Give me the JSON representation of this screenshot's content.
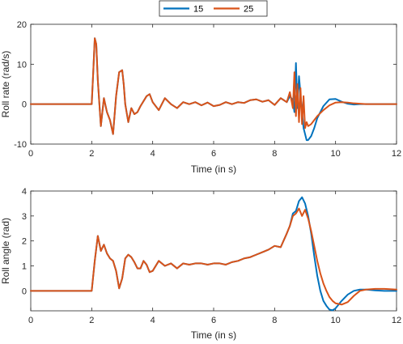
{
  "legend": {
    "entries": [
      {
        "label": "15",
        "color": "#0072BD"
      },
      {
        "label": "25",
        "color": "#D95319"
      }
    ]
  },
  "chart_data": [
    {
      "type": "line",
      "title": "",
      "xlabel": "Time (in s)",
      "ylabel": "Roll rate (rad/s)",
      "xlim": [
        0,
        12
      ],
      "ylim": [
        -10,
        20
      ],
      "xticks": [
        0,
        2,
        4,
        6,
        8,
        10,
        12
      ],
      "yticks": [
        -10,
        0,
        10,
        20
      ],
      "grid": false,
      "series": [
        {
          "name": "15",
          "color": "#0072BD",
          "x": [
            0,
            2.0,
            2.05,
            2.1,
            2.15,
            2.2,
            2.3,
            2.4,
            2.5,
            2.6,
            2.7,
            2.8,
            2.9,
            3.0,
            3.05,
            3.1,
            3.2,
            3.3,
            3.4,
            3.5,
            3.6,
            3.8,
            3.9,
            4.0,
            4.2,
            4.4,
            4.6,
            4.8,
            5.0,
            5.2,
            5.4,
            5.6,
            5.8,
            6.0,
            6.2,
            6.4,
            6.6,
            6.8,
            7.0,
            7.2,
            7.4,
            7.6,
            7.8,
            8.0,
            8.2,
            8.4,
            8.5,
            8.6,
            8.65,
            8.7,
            8.75,
            8.8,
            8.9,
            8.95,
            9.0,
            9.05,
            9.1,
            9.2,
            9.3,
            9.4,
            9.6,
            9.8,
            10.0,
            10.2,
            10.4,
            10.6,
            10.8,
            11.0,
            11.3,
            11.6,
            12.0
          ],
          "y": [
            0,
            0,
            8,
            16.5,
            15,
            6,
            -5.5,
            1.5,
            -2,
            -4,
            -7.5,
            2,
            8,
            8.5,
            5,
            0,
            -4.5,
            -1,
            -2.5,
            -2,
            -0.5,
            2,
            2.5,
            0.5,
            -1.5,
            1.5,
            0,
            -1,
            0.5,
            0,
            0.5,
            -0.3,
            0.4,
            -0.5,
            -0.2,
            0.5,
            0,
            0.5,
            0.3,
            1,
            1.2,
            0.6,
            1,
            -0.2,
            1.5,
            0.5,
            2,
            1,
            -2,
            10.3,
            -1,
            7,
            -2,
            -6,
            -7.5,
            -9,
            -9,
            -8,
            -6,
            -3.5,
            -0.5,
            1.2,
            1.3,
            0.6,
            0.1,
            -0.1,
            0,
            0,
            0,
            0,
            0
          ]
        },
        {
          "name": "25",
          "color": "#D95319",
          "x": [
            0,
            2.0,
            2.05,
            2.1,
            2.15,
            2.2,
            2.3,
            2.4,
            2.5,
            2.6,
            2.7,
            2.8,
            2.9,
            3.0,
            3.05,
            3.1,
            3.2,
            3.3,
            3.4,
            3.5,
            3.6,
            3.8,
            3.9,
            4.0,
            4.2,
            4.4,
            4.6,
            4.8,
            5.0,
            5.2,
            5.4,
            5.6,
            5.8,
            6.0,
            6.2,
            6.4,
            6.6,
            6.8,
            7.0,
            7.2,
            7.4,
            7.6,
            7.8,
            8.0,
            8.2,
            8.4,
            8.5,
            8.6,
            8.65,
            8.7,
            8.75,
            8.8,
            8.85,
            8.9,
            8.95,
            9.0,
            9.05,
            9.1,
            9.2,
            9.3,
            9.4,
            9.6,
            9.8,
            10.0,
            10.2,
            10.4,
            10.6,
            10.8,
            11.0,
            11.3,
            11.6,
            12.0
          ],
          "y": [
            0,
            0,
            8,
            16.5,
            15,
            6,
            -5.5,
            1.5,
            -2,
            -4,
            -7.5,
            2,
            8,
            8.5,
            5,
            0,
            -4.5,
            -1,
            -2.5,
            -2,
            -0.5,
            2,
            2.5,
            0.5,
            -1.5,
            1.5,
            0,
            -1,
            0.5,
            0,
            0.5,
            -0.3,
            0.4,
            -0.5,
            -0.2,
            0.5,
            0,
            0.5,
            0.3,
            1,
            1.2,
            0.6,
            1,
            -0.2,
            1.5,
            0.5,
            3,
            -1,
            8,
            -3,
            5,
            -4.5,
            4,
            -5,
            2,
            -6,
            -4.5,
            -5.5,
            -5,
            -4,
            -3,
            -1.5,
            -0.3,
            0.4,
            0.5,
            0.4,
            0.2,
            0.1,
            0,
            0,
            0,
            0
          ]
        }
      ]
    },
    {
      "type": "line",
      "title": "",
      "xlabel": "Time (in s)",
      "ylabel": "Roll angle (rad)",
      "xlim": [
        0,
        12
      ],
      "ylim": [
        -0.8,
        4
      ],
      "xticks": [
        0,
        2,
        4,
        6,
        8,
        10,
        12
      ],
      "yticks": [
        0,
        1,
        2,
        3,
        4
      ],
      "grid": false,
      "series": [
        {
          "name": "15",
          "color": "#0072BD",
          "x": [
            0,
            2.0,
            2.1,
            2.2,
            2.3,
            2.4,
            2.5,
            2.6,
            2.7,
            2.8,
            2.9,
            3.0,
            3.1,
            3.2,
            3.3,
            3.4,
            3.5,
            3.6,
            3.7,
            3.8,
            3.9,
            4.0,
            4.2,
            4.4,
            4.6,
            4.8,
            5.0,
            5.2,
            5.4,
            5.6,
            5.8,
            6.0,
            6.2,
            6.4,
            6.6,
            6.8,
            7.0,
            7.2,
            7.4,
            7.6,
            7.8,
            8.0,
            8.2,
            8.4,
            8.5,
            8.6,
            8.7,
            8.8,
            8.9,
            9.0,
            9.1,
            9.2,
            9.3,
            9.4,
            9.5,
            9.6,
            9.7,
            9.8,
            9.9,
            10.0,
            10.2,
            10.4,
            10.6,
            10.8,
            11.0,
            11.3,
            11.6,
            12.0
          ],
          "y": [
            0,
            0,
            1.2,
            2.2,
            1.6,
            1.85,
            1.5,
            1.3,
            1.2,
            0.8,
            0.1,
            0.5,
            1.3,
            1.45,
            1.35,
            1.15,
            0.9,
            0.9,
            1.2,
            1.05,
            0.75,
            0.8,
            1.2,
            1.0,
            1.1,
            0.9,
            1.1,
            1.05,
            1.1,
            1.1,
            1.05,
            1.1,
            1.1,
            1.05,
            1.15,
            1.2,
            1.3,
            1.35,
            1.45,
            1.55,
            1.65,
            1.8,
            1.75,
            2.3,
            2.6,
            3.1,
            3.2,
            3.6,
            3.75,
            3.5,
            3.0,
            2.3,
            1.4,
            0.6,
            0.0,
            -0.4,
            -0.6,
            -0.75,
            -0.78,
            -0.7,
            -0.4,
            -0.15,
            0.0,
            0.05,
            0.05,
            0.02,
            0.0,
            0.0
          ]
        },
        {
          "name": "25",
          "color": "#D95319",
          "x": [
            0,
            2.0,
            2.1,
            2.2,
            2.3,
            2.4,
            2.5,
            2.6,
            2.7,
            2.8,
            2.9,
            3.0,
            3.1,
            3.2,
            3.3,
            3.4,
            3.5,
            3.6,
            3.7,
            3.8,
            3.9,
            4.0,
            4.2,
            4.4,
            4.6,
            4.8,
            5.0,
            5.2,
            5.4,
            5.6,
            5.8,
            6.0,
            6.2,
            6.4,
            6.6,
            6.8,
            7.0,
            7.2,
            7.4,
            7.6,
            7.8,
            8.0,
            8.2,
            8.4,
            8.5,
            8.6,
            8.7,
            8.8,
            8.9,
            9.0,
            9.1,
            9.2,
            9.3,
            9.4,
            9.5,
            9.6,
            9.7,
            9.8,
            9.9,
            10.0,
            10.2,
            10.4,
            10.6,
            10.8,
            11.0,
            11.3,
            11.6,
            12.0
          ],
          "y": [
            0,
            0,
            1.2,
            2.2,
            1.6,
            1.85,
            1.5,
            1.3,
            1.2,
            0.8,
            0.1,
            0.5,
            1.3,
            1.45,
            1.35,
            1.15,
            0.9,
            0.9,
            1.2,
            1.05,
            0.75,
            0.8,
            1.2,
            1.0,
            1.1,
            0.9,
            1.1,
            1.05,
            1.1,
            1.1,
            1.05,
            1.1,
            1.1,
            1.05,
            1.15,
            1.2,
            1.3,
            1.35,
            1.45,
            1.55,
            1.65,
            1.8,
            1.75,
            2.3,
            2.6,
            3.0,
            3.1,
            3.3,
            3.0,
            3.25,
            2.9,
            2.4,
            1.8,
            1.2,
            0.7,
            0.3,
            0.0,
            -0.25,
            -0.4,
            -0.5,
            -0.55,
            -0.45,
            -0.2,
            0.0,
            0.05,
            0.08,
            0.08,
            0.05
          ]
        }
      ]
    }
  ]
}
